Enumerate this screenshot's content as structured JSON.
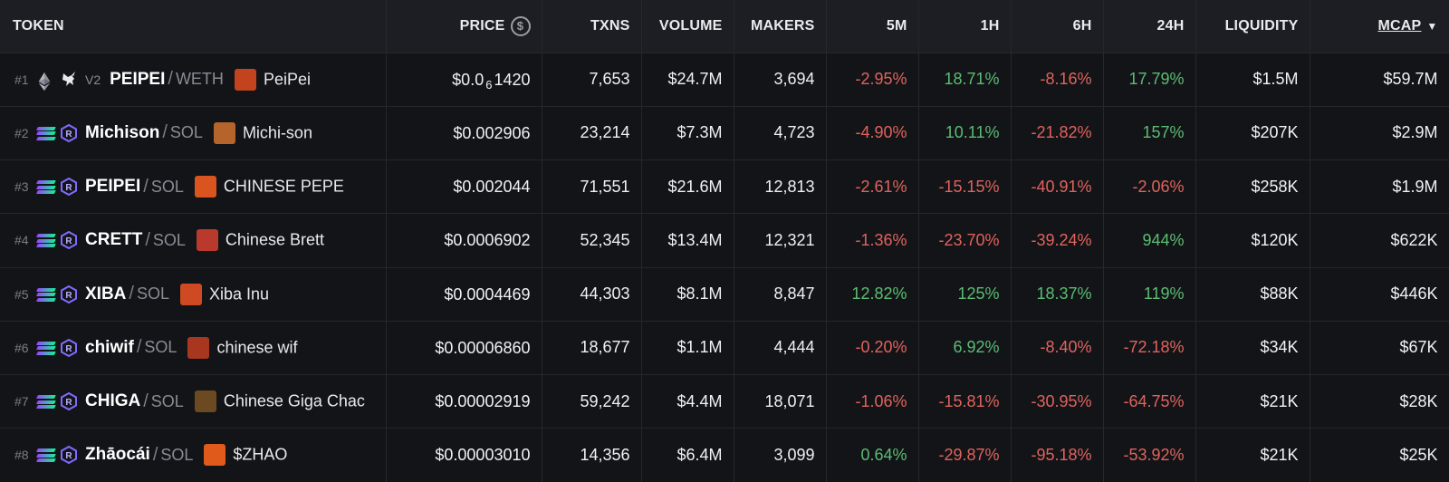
{
  "headers": {
    "token": "TOKEN",
    "price": "PRICE",
    "price_icon": "$",
    "txns": "TXNS",
    "volume": "VOLUME",
    "makers": "MAKERS",
    "m5": "5M",
    "h1": "1H",
    "h6": "6H",
    "h24": "24H",
    "liquidity": "LIQUIDITY",
    "mcap": "MCAP",
    "sort_arrow": "▼"
  },
  "rows": [
    {
      "rank": "#1",
      "chain": "ethereum",
      "dex": "unicorn-icon",
      "version": "V2",
      "symbol": "PEIPEI",
      "sep": "/",
      "quote": "WETH",
      "name": "PeiPei",
      "price": {
        "pre": "$0.0",
        "sub": "6",
        "post": "1420"
      },
      "txns": "7,653",
      "volume": "$24.7M",
      "makers": "3,694",
      "m5": "-2.95%",
      "h1": "18.71%",
      "h6": "-8.16%",
      "h24": "17.79%",
      "liquidity": "$1.5M",
      "mcap": "$59.7M"
    },
    {
      "rank": "#2",
      "chain": "solana",
      "dex": "raydium-icon",
      "version": "",
      "symbol": "Michison",
      "sep": "/",
      "quote": "SOL",
      "name": "Michi-son",
      "price": {
        "pre": "$0.002906",
        "sub": "",
        "post": ""
      },
      "txns": "23,214",
      "volume": "$7.3M",
      "makers": "4,723",
      "m5": "-4.90%",
      "h1": "10.11%",
      "h6": "-21.82%",
      "h24": "157%",
      "liquidity": "$207K",
      "mcap": "$2.9M"
    },
    {
      "rank": "#3",
      "chain": "solana",
      "dex": "raydium-icon",
      "version": "",
      "symbol": "PEIPEI",
      "sep": "/",
      "quote": "SOL",
      "name": "CHINESE PEPE",
      "price": {
        "pre": "$0.002044",
        "sub": "",
        "post": ""
      },
      "txns": "71,551",
      "volume": "$21.6M",
      "makers": "12,813",
      "m5": "-2.61%",
      "h1": "-15.15%",
      "h6": "-40.91%",
      "h24": "-2.06%",
      "liquidity": "$258K",
      "mcap": "$1.9M"
    },
    {
      "rank": "#4",
      "chain": "solana",
      "dex": "raydium-icon",
      "version": "",
      "symbol": "CRETT",
      "sep": "/",
      "quote": "SOL",
      "name": "Chinese Brett",
      "price": {
        "pre": "$0.0006902",
        "sub": "",
        "post": ""
      },
      "txns": "52,345",
      "volume": "$13.4M",
      "makers": "12,321",
      "m5": "-1.36%",
      "h1": "-23.70%",
      "h6": "-39.24%",
      "h24": "944%",
      "liquidity": "$120K",
      "mcap": "$622K"
    },
    {
      "rank": "#5",
      "chain": "solana",
      "dex": "raydium-icon",
      "version": "",
      "symbol": "XIBA",
      "sep": "/",
      "quote": "SOL",
      "name": "Xiba Inu",
      "price": {
        "pre": "$0.0004469",
        "sub": "",
        "post": ""
      },
      "txns": "44,303",
      "volume": "$8.1M",
      "makers": "8,847",
      "m5": "12.82%",
      "h1": "125%",
      "h6": "18.37%",
      "h24": "119%",
      "liquidity": "$88K",
      "mcap": "$446K"
    },
    {
      "rank": "#6",
      "chain": "solana",
      "dex": "raydium-icon",
      "version": "",
      "symbol": "chiwif",
      "sep": "/",
      "quote": "SOL",
      "name": "chinese wif",
      "price": {
        "pre": "$0.00006860",
        "sub": "",
        "post": ""
      },
      "txns": "18,677",
      "volume": "$1.1M",
      "makers": "4,444",
      "m5": "-0.20%",
      "h1": "6.92%",
      "h6": "-8.40%",
      "h24": "-72.18%",
      "liquidity": "$34K",
      "mcap": "$67K"
    },
    {
      "rank": "#7",
      "chain": "solana",
      "dex": "raydium-icon",
      "version": "",
      "symbol": "CHIGA",
      "sep": "/",
      "quote": "SOL",
      "name": "Chinese Giga Chac",
      "price": {
        "pre": "$0.00002919",
        "sub": "",
        "post": ""
      },
      "txns": "59,242",
      "volume": "$4.4M",
      "makers": "18,071",
      "m5": "-1.06%",
      "h1": "-15.81%",
      "h6": "-30.95%",
      "h24": "-64.75%",
      "liquidity": "$21K",
      "mcap": "$28K"
    },
    {
      "rank": "#8",
      "chain": "solana",
      "dex": "raydium-icon",
      "version": "",
      "symbol": "Zhāocái",
      "sep": "/",
      "quote": "SOL",
      "name": "$ZHAO",
      "price": {
        "pre": "$0.00003010",
        "sub": "",
        "post": ""
      },
      "txns": "14,356",
      "volume": "$6.4M",
      "makers": "3,099",
      "m5": "0.64%",
      "h1": "-29.87%",
      "h6": "-95.18%",
      "h24": "-53.92%",
      "liquidity": "$21K",
      "mcap": "$25K"
    }
  ],
  "colors": {
    "positive": "#5bbd72",
    "negative": "#e0635c",
    "background": "#131418",
    "header_bg": "#1d1e23"
  },
  "avatars": [
    "#c4431f",
    "#b5652b",
    "#d9541e",
    "#b9392c",
    "#cf4a22",
    "#a8371f",
    "#6b4a22",
    "#e05a1c"
  ]
}
